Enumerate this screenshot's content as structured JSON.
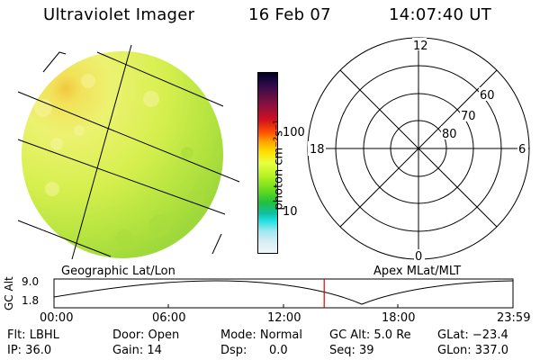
{
  "header": {
    "title": "Ultraviolet Imager",
    "date": "16 Feb 07",
    "time": "14:07:40 UT"
  },
  "image_panel": {
    "label": "Geographic Lat/Lon"
  },
  "colorbar": {
    "unit_label": "photon cm⁻²s⁻¹",
    "ticks": [
      "100",
      "10"
    ],
    "colors": [
      "#000020",
      "#1a0a3a",
      "#4a0b5a",
      "#8b1040",
      "#d01020",
      "#ff5000",
      "#ffa000",
      "#ffe000",
      "#c8ff20",
      "#70e020",
      "#20c020",
      "#10c0a0",
      "#20e0e0",
      "#a0e8f0",
      "#e8f4f8"
    ]
  },
  "polar_panel": {
    "label": "Apex MLat/MLT",
    "mlt_labels": {
      "top": "12",
      "left": "18",
      "right": "6",
      "bottom": "0"
    },
    "lat_labels": [
      "60",
      "70",
      "80"
    ]
  },
  "timeline": {
    "ylabel": "GC Alt",
    "yticks": [
      "9.0",
      "1.8"
    ],
    "xticks": [
      "00:00",
      "06:00",
      "12:00",
      "18:00",
      "23:59"
    ],
    "current_time_hours": 14.128
  },
  "info": {
    "flt": "Flt: LBHL",
    "ip": "IP: 36.0",
    "door": "Door: Open",
    "gain": "Gain: 14",
    "mode": "Mode: Normal",
    "dsp_label": "Dsp:",
    "dsp_value": "0.0",
    "gc_alt": "GC Alt: 5.0 Re",
    "seq": "Seq: 39",
    "glat": "GLat: −23.4",
    "glon": "GLon: 337.0"
  }
}
